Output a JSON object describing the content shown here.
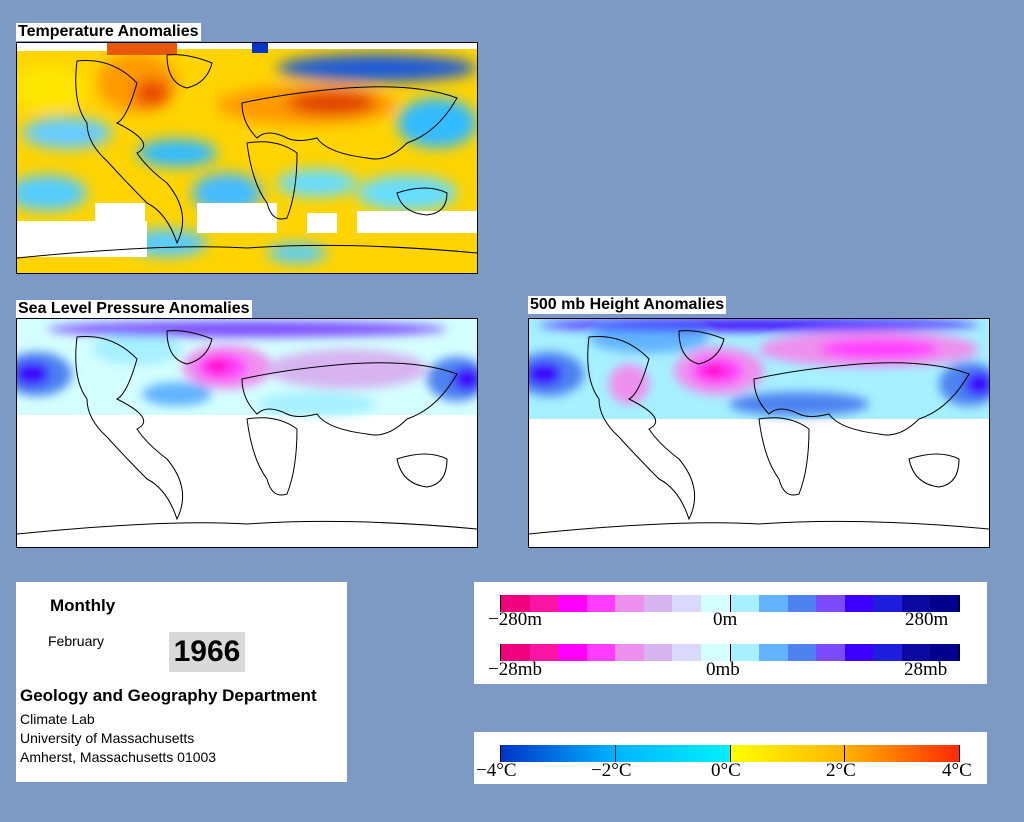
{
  "maps": {
    "temperature_title": "Temperature Anomalies",
    "slp_title": "Sea Level Pressure Anomalies",
    "height_title": "500 mb Height Anomalies"
  },
  "info": {
    "period": "Monthly",
    "month": "February",
    "year": "1966",
    "department": "Geology and Geography Department",
    "lab": "Climate Lab",
    "university": "University of Massachusetts",
    "address": "Amherst, Massachusetts 01003"
  },
  "legend_height": {
    "labels": [
      "−280m",
      "0m",
      "280m"
    ],
    "colors": [
      "#f0007d",
      "#fa14a5",
      "#ff00ff",
      "#ff3cff",
      "#ee90ee",
      "#d7b4f0",
      "#d9d9fb",
      "#d4ffff",
      "#a6f0ff",
      "#62b4ff",
      "#4d82f0",
      "#7d4bff",
      "#3c00ff",
      "#1e1edc",
      "#0a0aa0",
      "#00008c"
    ]
  },
  "legend_pressure": {
    "labels": [
      "−28mb",
      "0mb",
      "28mb"
    ],
    "colors": [
      "#f0007d",
      "#fa14a5",
      "#ff00ff",
      "#ff3cff",
      "#ee90ee",
      "#d7b4f0",
      "#d9d9fb",
      "#d4ffff",
      "#a6f0ff",
      "#62b4ff",
      "#4d82f0",
      "#7d4bff",
      "#3c00ff",
      "#1e1edc",
      "#0a0aa0",
      "#00008c"
    ]
  },
  "legend_temperature": {
    "labels": [
      "−4°C",
      "−2°C",
      "0°C",
      "2°C",
      "4°C"
    ],
    "colors": {
      "cold_dark": "#0032c8",
      "cold": "#00b4ff",
      "neutral_cold": "#00f0ff",
      "neutral_warm": "#ffff00",
      "warm": "#ffb400",
      "hot": "#ff2800"
    }
  }
}
